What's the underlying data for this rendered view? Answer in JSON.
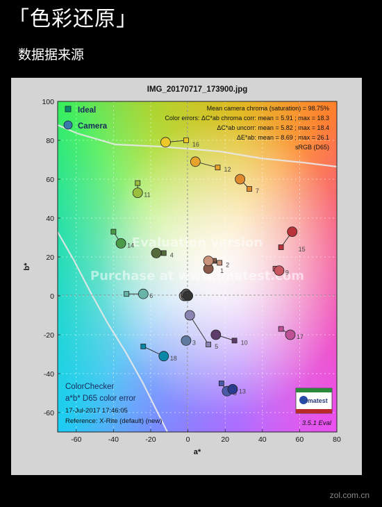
{
  "header": {
    "title": "「色彩还原」",
    "subtitle": "数据据来源"
  },
  "watermark": "zol.com.cn",
  "chart_data": {
    "type": "scatter",
    "title": "IMG_20170717_173900.jpg",
    "xlabel": "a*",
    "ylabel": "b*",
    "xlim": [
      -70,
      80
    ],
    "ylim": [
      -70,
      100
    ],
    "xticks": [
      -60,
      -40,
      -20,
      0,
      20,
      40,
      60,
      80
    ],
    "yticks": [
      -60,
      -40,
      -20,
      0,
      20,
      40,
      60,
      80,
      100
    ],
    "grid": "dotted",
    "legend_position": "top-left",
    "legend": [
      {
        "name": "Ideal",
        "marker": "square"
      },
      {
        "name": "Camera",
        "marker": "circle"
      }
    ],
    "stats": [
      "Mean camera chroma (saturation) = 98.75%",
      "Color errors: ΔC*ab chroma corr:  mean = 5.91 ;  max = 18.3",
      "ΔC*ab uncorr:  mean = 5.82 ;  max = 18.4",
      "ΔE*ab:  mean = 8.69 ;  max = 26.1",
      "sRGB (D65)"
    ],
    "bottom_left_text": [
      "ColorChecker",
      "a*b* D65 color error",
      "17-Jul-2017 17:46:05",
      "Reference: X-Rite (default) (new)"
    ],
    "watermarks": [
      "Evaluation version",
      "Purchase at www.imatest.com"
    ],
    "logo_text": "imatest",
    "version_text": "3.5.1  Eval",
    "patches": [
      {
        "id": "1",
        "ideal": [
          14,
          18
        ],
        "camera": [
          11,
          14
        ],
        "color": "#8c5a48"
      },
      {
        "id": "2",
        "ideal": [
          17,
          17
        ],
        "camera": [
          11,
          18
        ],
        "color": "#c8937a"
      },
      {
        "id": "3",
        "ideal": [
          -1,
          -23
        ],
        "camera": [
          -1,
          -23
        ],
        "color": "#5e7a9e"
      },
      {
        "id": "4",
        "ideal": [
          -13,
          22
        ],
        "camera": [
          -17,
          22
        ],
        "color": "#566b3c"
      },
      {
        "id": "5",
        "ideal": [
          11,
          -25
        ],
        "camera": [
          1,
          -10
        ],
        "color": "#8a85b0"
      },
      {
        "id": "6",
        "ideal": [
          -33,
          1
        ],
        "camera": [
          -24,
          1
        ],
        "color": "#68b4a8"
      },
      {
        "id": "7",
        "ideal": [
          33,
          55
        ],
        "camera": [
          28,
          60
        ],
        "color": "#e08a30"
      },
      {
        "id": "8",
        "ideal": [
          18,
          -45
        ],
        "camera": [
          21,
          -49
        ],
        "color": "#4a5aa8"
      },
      {
        "id": "9",
        "ideal": [
          47,
          14
        ],
        "camera": [
          49,
          13
        ],
        "color": "#c85560"
      },
      {
        "id": "10",
        "ideal": [
          25,
          -23
        ],
        "camera": [
          15,
          -20
        ],
        "color": "#5e3c6a"
      },
      {
        "id": "11",
        "ideal": [
          -27,
          58
        ],
        "camera": [
          -27,
          53
        ],
        "color": "#9abe3e"
      },
      {
        "id": "12",
        "ideal": [
          16,
          66
        ],
        "camera": [
          4,
          69
        ],
        "color": "#e6a22a"
      },
      {
        "id": "13",
        "ideal": [
          23,
          -48
        ],
        "camera": [
          24,
          -48
        ],
        "color": "#2c3c8c"
      },
      {
        "id": "14",
        "ideal": [
          -40,
          33
        ],
        "camera": [
          -36,
          27
        ],
        "color": "#4a9a48"
      },
      {
        "id": "15",
        "ideal": [
          50,
          25
        ],
        "camera": [
          56,
          33
        ],
        "color": "#b8323a"
      },
      {
        "id": "16",
        "ideal": [
          -1,
          80
        ],
        "camera": [
          -12,
          79
        ],
        "color": "#ecc828"
      },
      {
        "id": "17",
        "ideal": [
          50,
          -17
        ],
        "camera": [
          55,
          -20
        ],
        "color": "#be5096"
      },
      {
        "id": "18",
        "ideal": [
          -24,
          -26
        ],
        "camera": [
          -13,
          -31
        ],
        "color": "#0886a8"
      },
      {
        "id": "19",
        "ideal": [
          0,
          1
        ],
        "camera": [
          -2,
          0
        ],
        "color": "#f2f2f2"
      },
      {
        "id": "20",
        "ideal": [
          0,
          0
        ],
        "camera": [
          -1,
          1
        ],
        "color": "#c8c8c8"
      },
      {
        "id": "21",
        "ideal": [
          0,
          0
        ],
        "camera": [
          -2,
          0
        ],
        "color": "#a0a0a0"
      },
      {
        "id": "22",
        "ideal": [
          0,
          0
        ],
        "camera": [
          -1,
          0
        ],
        "color": "#7a7a7a"
      },
      {
        "id": "23",
        "ideal": [
          0,
          0
        ],
        "camera": [
          -1,
          1
        ],
        "color": "#555555"
      },
      {
        "id": "24",
        "ideal": [
          0,
          0
        ],
        "camera": [
          0,
          0
        ],
        "color": "#343434"
      }
    ]
  }
}
